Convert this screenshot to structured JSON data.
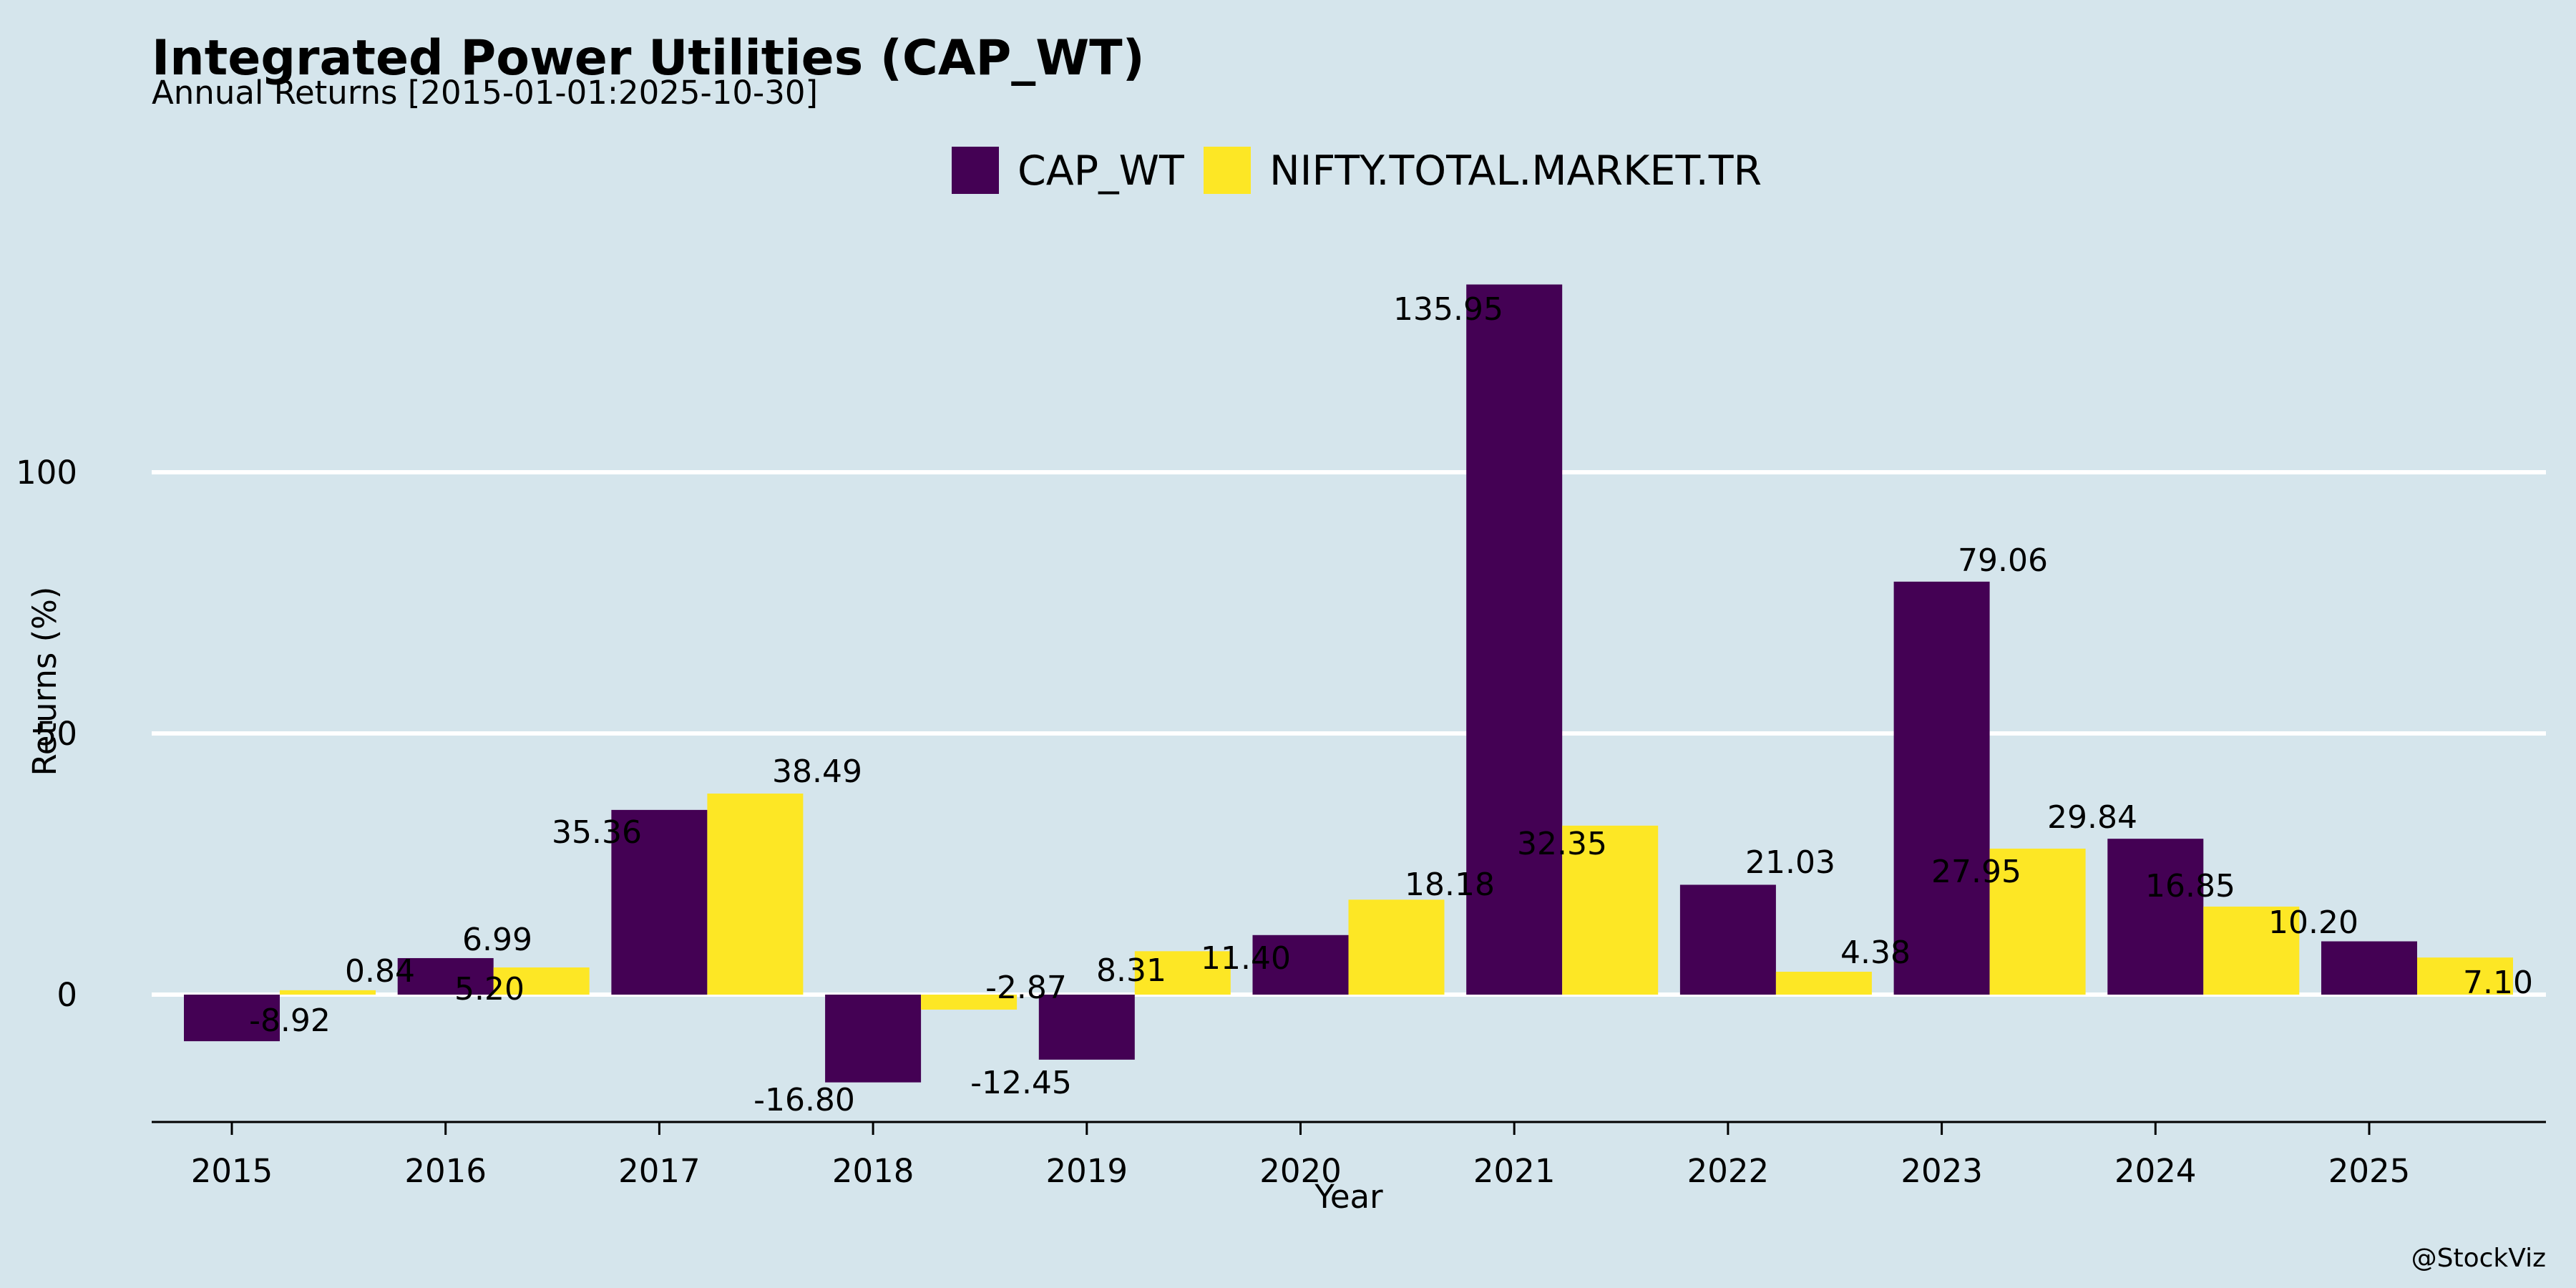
{
  "chart_data": {
    "type": "bar",
    "title": "Integrated Power Utilities (CAP_WT)",
    "subtitle": "Annual Returns [2015-01-01:2025-10-30]",
    "xlabel": "Year",
    "ylabel": "Returns (%)",
    "categories": [
      "2015",
      "2016",
      "2017",
      "2018",
      "2019",
      "2020",
      "2021",
      "2022",
      "2023",
      "2024",
      "2025"
    ],
    "series": [
      {
        "name": "CAP_WT",
        "color": "#440154",
        "values": [
          -8.92,
          6.99,
          35.36,
          -16.8,
          -12.45,
          11.4,
          135.95,
          21.03,
          79.06,
          29.84,
          10.2
        ],
        "labels": [
          "-8.92",
          "6.99",
          "35.36",
          "-16.80",
          "-12.45",
          "11.40",
          "135.95",
          "21.03",
          "79.06",
          "29.84",
          "10.20"
        ]
      },
      {
        "name": "NIFTY.TOTAL.MARKET.TR",
        "color": "#fde725",
        "values": [
          0.84,
          5.2,
          38.49,
          -2.87,
          8.31,
          18.18,
          32.35,
          4.38,
          27.95,
          16.85,
          7.1
        ],
        "labels": [
          "0.84",
          "5.20",
          "38.49",
          "-2.87",
          "8.31",
          "18.18",
          "32.35",
          "4.38",
          "27.95",
          "16.85",
          "7.10"
        ]
      }
    ],
    "yticks": [
      0,
      50,
      100
    ],
    "ytick_labels": [
      "0",
      "50",
      "100"
    ],
    "ylim": [
      -24.5,
      150
    ],
    "grid": "horizontal",
    "legend_position": "top-center",
    "credit": "@StockViz"
  }
}
